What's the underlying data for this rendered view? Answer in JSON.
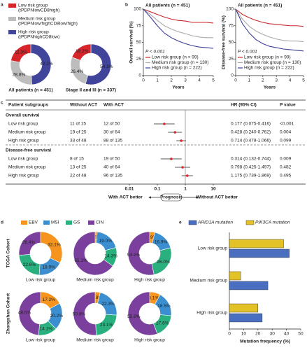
{
  "chart_data": [
    {
      "type": "donut",
      "label": "a",
      "categories": [
        "Low risk group",
        "Medium risk group",
        "High risk group"
      ],
      "legend_notes": [
        "(tPDPNlowCD8high)",
        "(tPDPNlow/highCD8low/high)",
        "(tPDPNhighCD8low)"
      ],
      "colors": [
        "#d7262b",
        "#bdbdbd",
        "#40449a"
      ],
      "donuts": [
        {
          "title": "All patients (n = 451)",
          "values": [
            22.0,
            28.8,
            49.2
          ],
          "value_labels": [
            "22.0%",
            "28.8%",
            "49.2%"
          ]
        },
        {
          "title": "Stage II and III (n = 337)",
          "values": [
            19.2,
            26.4,
            54.3
          ],
          "value_labels": [
            "19.2%",
            "26.4%",
            "54.3%"
          ]
        }
      ]
    },
    {
      "type": "line",
      "label": "b",
      "title": "All patients (n = 451)",
      "annotation": "P < 0.001",
      "ylabel": "Overall survival (%)",
      "xlabel": "Years",
      "x": [
        0,
        0.5,
        1,
        1.5,
        2,
        2.5,
        3,
        3.5,
        4,
        4.5,
        5
      ],
      "xlim": [
        0,
        5
      ],
      "xticks": [
        0,
        1,
        2,
        3,
        4,
        5
      ],
      "ylim": [
        0,
        100
      ],
      "yticks": [
        0,
        25,
        50,
        75,
        100
      ],
      "series": [
        {
          "name": "Low risk group (n = 99)",
          "color": "#c8282d",
          "values": [
            100,
            96,
            92,
            88,
            85,
            83,
            82,
            80,
            80,
            80,
            79
          ]
        },
        {
          "name": "Medium risk group (n = 130)",
          "color": "#aaaaaa",
          "values": [
            100,
            92,
            83,
            75,
            70,
            66,
            63,
            60,
            58,
            57,
            57
          ]
        },
        {
          "name": "High risk group (n = 222)",
          "color": "#3c3f96",
          "values": [
            100,
            88,
            75,
            64,
            57,
            52,
            48,
            45,
            43,
            42,
            41
          ]
        }
      ]
    },
    {
      "type": "line",
      "title": "All patients (n = 451)",
      "annotation": "P < 0.001",
      "ylabel": "Disease-free survival (%)",
      "xlabel": "Years",
      "x": [
        0,
        0.5,
        1,
        1.5,
        2,
        2.5,
        3,
        3.5,
        4,
        4.5,
        5
      ],
      "xlim": [
        0,
        5
      ],
      "xticks": [
        0,
        1,
        2,
        3,
        4,
        5
      ],
      "ylim": [
        0,
        100
      ],
      "yticks": [
        0,
        25,
        50,
        75,
        100
      ],
      "series": [
        {
          "name": "Low risk group (n = 99)",
          "color": "#c8282d",
          "values": [
            100,
            92,
            87,
            83,
            80,
            78,
            77,
            76,
            75,
            75,
            74
          ]
        },
        {
          "name": "Medium risk group (n = 130)",
          "color": "#aaaaaa",
          "values": [
            100,
            85,
            74,
            67,
            62,
            58,
            55,
            53,
            52,
            52,
            51
          ]
        },
        {
          "name": "High risk group (n = 222)",
          "color": "#3c3f96",
          "values": [
            100,
            78,
            64,
            54,
            48,
            44,
            42,
            40,
            39,
            38,
            37
          ]
        }
      ]
    },
    {
      "type": "forest",
      "label": "c",
      "columns": [
        "Patient subgroups",
        "Without ACT",
        "With ACT",
        "HR (95% CI)",
        "P value"
      ],
      "xlim": [
        0.01,
        10
      ],
      "xticks": [
        0.01,
        0.1,
        1,
        10
      ],
      "log_scale": true,
      "color": "#d7262b",
      "xlabel_left": "With ACT better",
      "xlabel_center": "Prognosis",
      "xlabel_right": "Without ACT better",
      "sections": [
        {
          "title": "Overall survival",
          "rows": [
            {
              "group": "Low risk group",
              "without": "11 of 15",
              "with": "12 of 50",
              "hr": 0.177,
              "lo": 0.075,
              "hi": 0.416,
              "hr_label": "0.177 (0.075-0.416)",
              "p": "<0.001"
            },
            {
              "group": "Medium risk group",
              "without": "19 of 25",
              "with": "30 of 64",
              "hr": 0.428,
              "lo": 0.24,
              "hi": 0.762,
              "hr_label": "0.428 (0.240-0.762)",
              "p": "0.004"
            },
            {
              "group": "High risk group",
              "without": "33 of 48",
              "with": "88 of 135",
              "hr": 0.714,
              "lo": 0.478,
              "hi": 1.066,
              "hr_label": "0.714 (0.478-1.066)",
              "p": "0.099"
            }
          ]
        },
        {
          "title": "Disease-free survival",
          "rows": [
            {
              "group": "Low risk group",
              "without": "8 of 15",
              "with": "19 of 50",
              "hr": 0.314,
              "lo": 0.132,
              "hi": 0.744,
              "hr_label": "0.314 (0.132-0.744)",
              "p": "0.009"
            },
            {
              "group": "Medium risk group",
              "without": "13 of 25",
              "with": "40 of 64",
              "hr": 0.798,
              "lo": 0.425,
              "hi": 1.497,
              "hr_label": "0.798 (0.425-1.497)",
              "p": "0.482"
            },
            {
              "group": "High risk group",
              "without": "22 of 48",
              "with": "96 of 135",
              "hr": 1.175,
              "lo": 0.739,
              "hi": 1.869,
              "hr_label": "1.175 (0.739-1.869)",
              "p": "0.495"
            }
          ]
        }
      ]
    },
    {
      "type": "donut_grid",
      "label": "d",
      "categories": [
        "EBV",
        "MSI",
        "GS",
        "CIN"
      ],
      "colors": [
        "#f7941d",
        "#3b8fd0",
        "#2ab07f",
        "#7b3f9e"
      ],
      "rows": [
        "TCGA Cohort",
        "Zhongshan Cohort"
      ],
      "columns": [
        "Low risk group",
        "Medium risk group",
        "High risk group"
      ],
      "values": [
        [
          32.1,
          18.9,
          22.6,
          26.4
        ],
        [
          1.6,
          19.0,
          14.3,
          65.1
        ],
        [
          3.9,
          16.9,
          26.0,
          53.2
        ],
        [
          17.2,
          20.2,
          14.1,
          48.5
        ],
        [
          3.8,
          22.3,
          23.1,
          50.8
        ],
        [
          8.1,
          18.5,
          17.6,
          55.8
        ]
      ],
      "value_labels": [
        [
          "32.1%",
          "18.9%",
          "22.6%",
          "26.4%"
        ],
        [
          "1.6%",
          "19.0%",
          "14.3%",
          "65.1%"
        ],
        [
          "3.9%",
          "16.9%",
          "26.0%",
          "53.2%"
        ],
        [
          "17.2%",
          "20.2%",
          "14.1%",
          "48.5%"
        ],
        [
          "3.8%",
          "22.3%",
          "23.1%",
          "50.8%"
        ],
        [
          "8.1%",
          "18.5%",
          "17.6%",
          "55.8%"
        ]
      ]
    },
    {
      "type": "hbar",
      "label": "e",
      "xlabel": "Mutation frequency (%)",
      "categories": [
        "Low risk group",
        "Medium risk group",
        "High risk group"
      ],
      "xlim": [
        0,
        50
      ],
      "xticks": [
        0,
        10,
        20,
        30,
        40,
        50
      ],
      "series": [
        {
          "name": "ARID1A mutation",
          "color": "#4a6fc1",
          "values": [
            42,
            27,
            23
          ]
        },
        {
          "name": "PIK3CA mutation",
          "color": "#e3c227",
          "values": [
            38,
            8,
            20
          ]
        }
      ]
    }
  ]
}
